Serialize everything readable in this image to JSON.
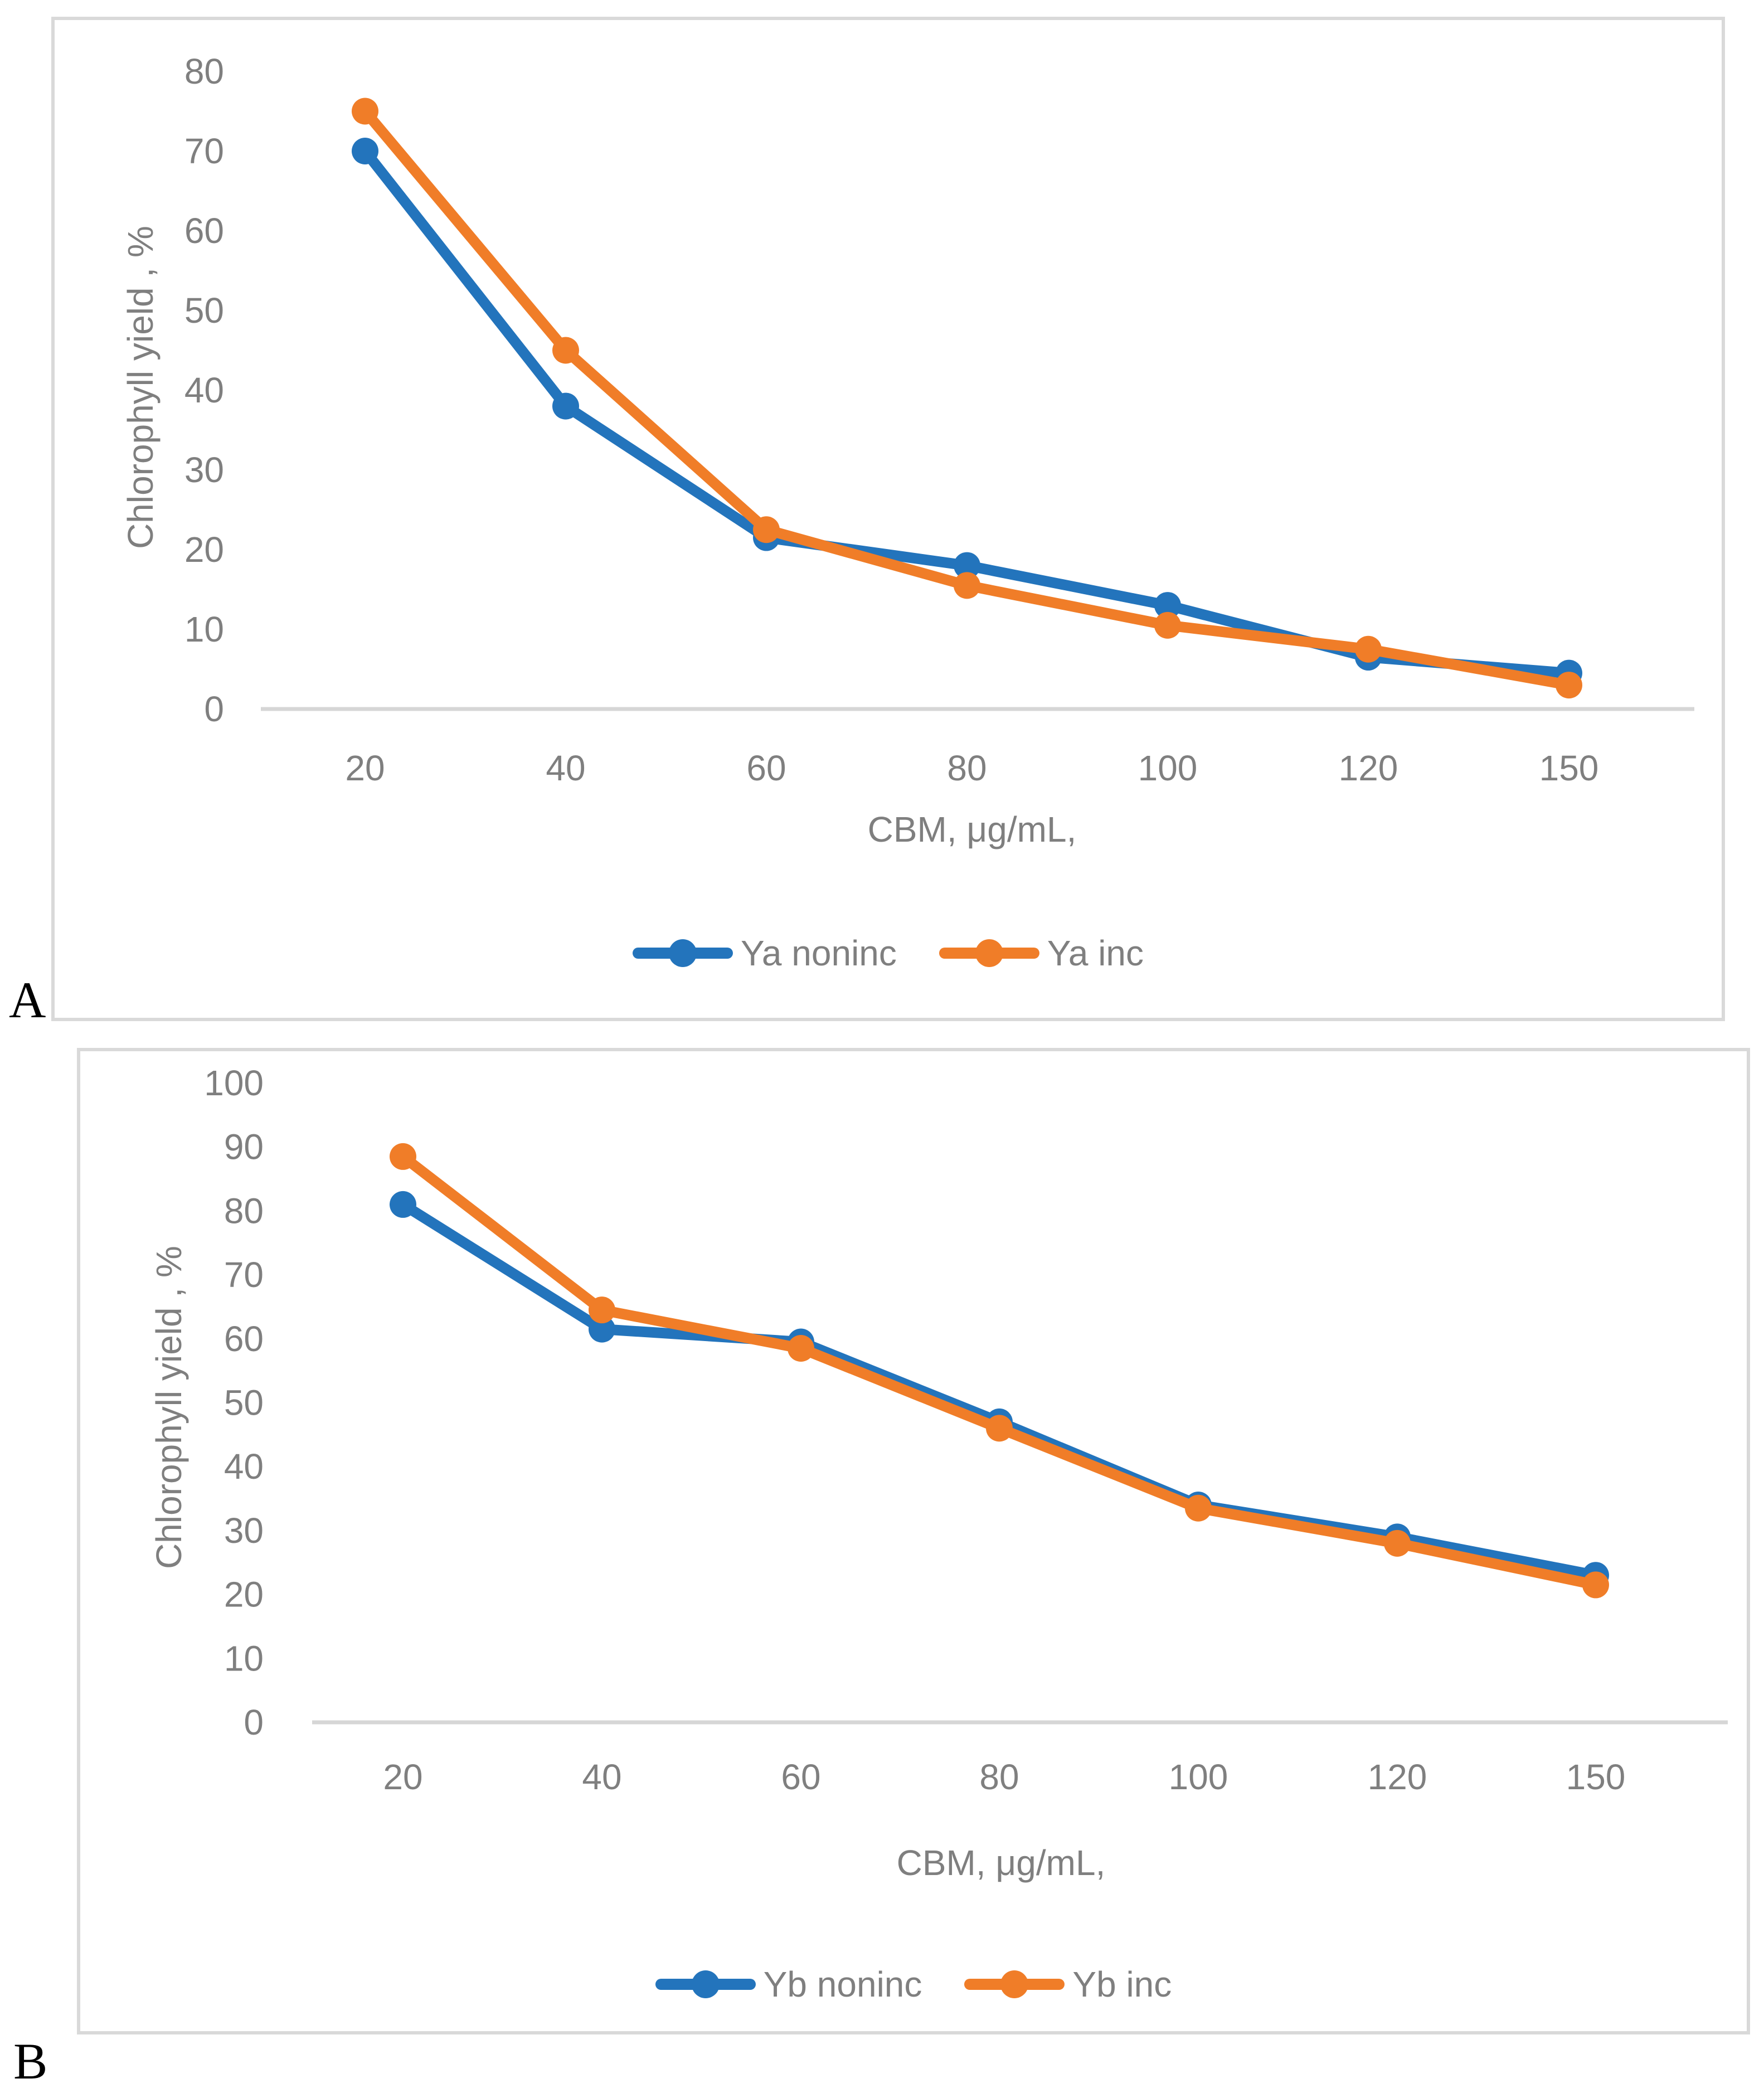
{
  "figure": {
    "panel_label_a": "A",
    "panel_label_b": "B",
    "background": "#ffffff"
  },
  "colors": {
    "blue": "#2374bc",
    "orange": "#f07d28",
    "axis_text": "#7f7f7f",
    "axis_line": "#d6d6d6",
    "panel_border": "#d9d9d9"
  },
  "chart_data": [
    {
      "id": "A",
      "type": "line",
      "x_axis_type": "category",
      "categories": [
        20,
        40,
        60,
        80,
        100,
        120,
        150
      ],
      "series": [
        {
          "name": "Ya noninc",
          "color_key": "blue",
          "values": [
            70,
            38,
            21.5,
            18,
            13,
            6.5,
            4.5
          ]
        },
        {
          "name": "Ya inc",
          "color_key": "orange",
          "values": [
            75,
            45,
            22.5,
            15.5,
            10.5,
            7.5,
            3
          ]
        }
      ],
      "xlabel": "CBM, μg/mL,",
      "ylabel": "Chlorophyll yield , %",
      "ylim": [
        0,
        80
      ],
      "ytick_step": 10,
      "yticks": [
        "0",
        "10",
        "20",
        "30",
        "40",
        "50",
        "60",
        "70",
        "80"
      ],
      "grid": false,
      "legend_position": "bottom"
    },
    {
      "id": "B",
      "type": "line",
      "x_axis_type": "category",
      "categories": [
        20,
        40,
        60,
        80,
        100,
        120,
        150
      ],
      "series": [
        {
          "name": "Yb noninc",
          "color_key": "blue",
          "values": [
            81,
            61.5,
            59.5,
            47,
            34,
            29,
            23
          ]
        },
        {
          "name": "Yb inc",
          "color_key": "orange",
          "values": [
            88.5,
            64.5,
            58.5,
            46,
            33.5,
            28,
            21.5
          ]
        }
      ],
      "xlabel": "CBM, μg/mL,",
      "ylabel": "Chlorophyll yield , %",
      "ylim": [
        0,
        100
      ],
      "ytick_step": 10,
      "yticks": [
        "0",
        "10",
        "20",
        "30",
        "40",
        "50",
        "60",
        "70",
        "80",
        "90",
        "100"
      ],
      "grid": false,
      "legend_position": "bottom"
    }
  ]
}
